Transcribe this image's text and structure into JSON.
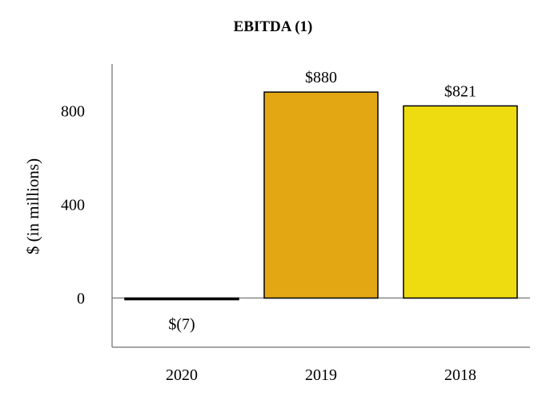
{
  "chart_data": {
    "type": "bar",
    "title": "EBITDA (1)",
    "ylabel": "$ (in millions)",
    "xlabel": "",
    "categories": [
      "2020",
      "2019",
      "2018"
    ],
    "values": [
      -7,
      880,
      821
    ],
    "data_labels": [
      "$(7)",
      "$880",
      "$821"
    ],
    "ylim": [
      -210,
      1000
    ],
    "yticks": [
      0,
      400,
      800
    ],
    "grid": false,
    "legend": "none",
    "colors": [
      "#000000",
      "#E3A714",
      "#EEDC10"
    ]
  }
}
